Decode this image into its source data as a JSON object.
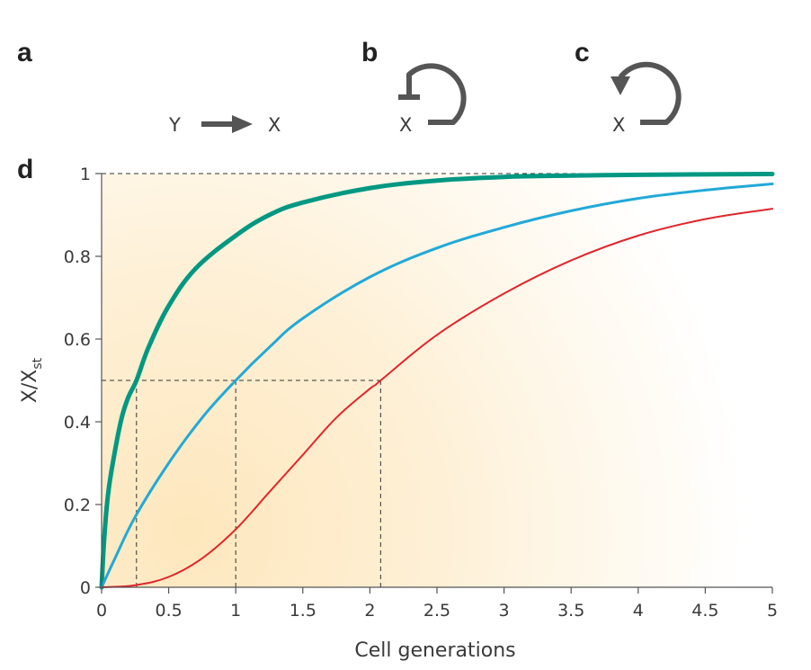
{
  "panels": {
    "a": {
      "letter": "a",
      "source": "Y",
      "target": "X"
    },
    "b": {
      "letter": "b",
      "node": "X"
    },
    "c": {
      "letter": "c",
      "node": "X"
    },
    "d": {
      "letter": "d"
    }
  },
  "colors": {
    "arrow": "#555555",
    "teal": "#009882",
    "blue": "#21a9d8",
    "red": "#e0262b",
    "background_warm": "#fde9c4",
    "guide": "#333333"
  },
  "chart_data": {
    "type": "line",
    "xlabel": "Cell generations",
    "ylabel": "X/X",
    "ylabel_subscript": "st",
    "xlim": [
      0,
      5
    ],
    "ylim": [
      0,
      1
    ],
    "x_ticks": [
      0,
      0.5,
      1,
      1.5,
      2,
      2.5,
      3,
      3.5,
      4,
      4.5,
      5
    ],
    "x_tick_labels": [
      "0",
      "0.5",
      "1",
      "1.5",
      "2",
      "2.5",
      "3",
      "3.5",
      "4",
      "4.5",
      "5"
    ],
    "y_ticks": [
      0,
      0.2,
      0.4,
      0.6,
      0.8,
      1
    ],
    "y_tick_labels": [
      "0",
      "0.2",
      "0.4",
      "0.6",
      "0.8",
      "1"
    ],
    "grid": false,
    "series": [
      {
        "color": "#009882",
        "width": 5,
        "x": [
          0,
          0.02,
          0.05,
          0.1,
          0.15,
          0.2,
          0.26,
          0.35,
          0.5,
          0.7,
          1,
          1.25,
          1.5,
          2,
          2.5,
          3,
          3.5,
          4,
          4.5,
          5
        ],
        "y": [
          0,
          0.12,
          0.23,
          0.33,
          0.41,
          0.46,
          0.5,
          0.58,
          0.68,
          0.77,
          0.85,
          0.9,
          0.93,
          0.965,
          0.983,
          0.992,
          0.995,
          0.997,
          0.998,
          0.999
        ]
      },
      {
        "color": "#21a9d8",
        "width": 3,
        "x": [
          0,
          0.1,
          0.25,
          0.5,
          0.75,
          1,
          1.25,
          1.5,
          2,
          2.5,
          3,
          3.5,
          4,
          4.5,
          5
        ],
        "y": [
          0,
          0.07,
          0.17,
          0.3,
          0.41,
          0.5,
          0.58,
          0.65,
          0.75,
          0.82,
          0.87,
          0.91,
          0.94,
          0.96,
          0.975
        ]
      },
      {
        "color": "#e0262b",
        "width": 2,
        "x": [
          0,
          0.25,
          0.5,
          0.75,
          1,
          1.25,
          1.5,
          1.75,
          2,
          2.08,
          2.5,
          3,
          3.5,
          4,
          4.5,
          5
        ],
        "y": [
          0,
          0.005,
          0.025,
          0.07,
          0.14,
          0.23,
          0.32,
          0.41,
          0.48,
          0.5,
          0.61,
          0.71,
          0.79,
          0.85,
          0.89,
          0.915
        ]
      }
    ],
    "guide_lines": {
      "y_level": 0.5,
      "x_values": [
        0.26,
        1,
        2.08
      ],
      "top_level": 1
    }
  }
}
